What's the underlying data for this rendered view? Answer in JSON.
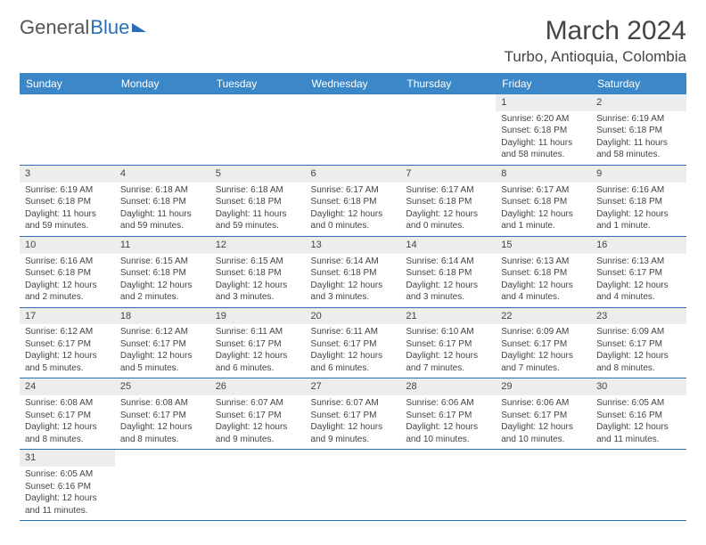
{
  "logo": {
    "part1": "General",
    "part2": "Blue"
  },
  "title": {
    "month": "March 2024",
    "location": "Turbo, Antioquia, Colombia"
  },
  "colors": {
    "header_bg": "#3b87c8",
    "header_text": "#ffffff",
    "daynum_bg": "#eceeee",
    "row_border": "#2a6fb5",
    "text": "#444444",
    "logo_gray": "#555555",
    "logo_blue": "#2a6fb5",
    "page_bg": "#ffffff"
  },
  "typography": {
    "month_fontsize": 30,
    "location_fontsize": 17,
    "logo_fontsize": 22,
    "th_fontsize": 12,
    "daynum_fontsize": 11,
    "body_fontsize": 10
  },
  "weekdays": [
    "Sunday",
    "Monday",
    "Tuesday",
    "Wednesday",
    "Thursday",
    "Friday",
    "Saturday"
  ],
  "grid": [
    [
      {
        "n": "",
        "sunrise": "",
        "sunset": "",
        "daylight": ""
      },
      {
        "n": "",
        "sunrise": "",
        "sunset": "",
        "daylight": ""
      },
      {
        "n": "",
        "sunrise": "",
        "sunset": "",
        "daylight": ""
      },
      {
        "n": "",
        "sunrise": "",
        "sunset": "",
        "daylight": ""
      },
      {
        "n": "",
        "sunrise": "",
        "sunset": "",
        "daylight": ""
      },
      {
        "n": "1",
        "sunrise": "Sunrise: 6:20 AM",
        "sunset": "Sunset: 6:18 PM",
        "daylight": "Daylight: 11 hours and 58 minutes."
      },
      {
        "n": "2",
        "sunrise": "Sunrise: 6:19 AM",
        "sunset": "Sunset: 6:18 PM",
        "daylight": "Daylight: 11 hours and 58 minutes."
      }
    ],
    [
      {
        "n": "3",
        "sunrise": "Sunrise: 6:19 AM",
        "sunset": "Sunset: 6:18 PM",
        "daylight": "Daylight: 11 hours and 59 minutes."
      },
      {
        "n": "4",
        "sunrise": "Sunrise: 6:18 AM",
        "sunset": "Sunset: 6:18 PM",
        "daylight": "Daylight: 11 hours and 59 minutes."
      },
      {
        "n": "5",
        "sunrise": "Sunrise: 6:18 AM",
        "sunset": "Sunset: 6:18 PM",
        "daylight": "Daylight: 11 hours and 59 minutes."
      },
      {
        "n": "6",
        "sunrise": "Sunrise: 6:17 AM",
        "sunset": "Sunset: 6:18 PM",
        "daylight": "Daylight: 12 hours and 0 minutes."
      },
      {
        "n": "7",
        "sunrise": "Sunrise: 6:17 AM",
        "sunset": "Sunset: 6:18 PM",
        "daylight": "Daylight: 12 hours and 0 minutes."
      },
      {
        "n": "8",
        "sunrise": "Sunrise: 6:17 AM",
        "sunset": "Sunset: 6:18 PM",
        "daylight": "Daylight: 12 hours and 1 minute."
      },
      {
        "n": "9",
        "sunrise": "Sunrise: 6:16 AM",
        "sunset": "Sunset: 6:18 PM",
        "daylight": "Daylight: 12 hours and 1 minute."
      }
    ],
    [
      {
        "n": "10",
        "sunrise": "Sunrise: 6:16 AM",
        "sunset": "Sunset: 6:18 PM",
        "daylight": "Daylight: 12 hours and 2 minutes."
      },
      {
        "n": "11",
        "sunrise": "Sunrise: 6:15 AM",
        "sunset": "Sunset: 6:18 PM",
        "daylight": "Daylight: 12 hours and 2 minutes."
      },
      {
        "n": "12",
        "sunrise": "Sunrise: 6:15 AM",
        "sunset": "Sunset: 6:18 PM",
        "daylight": "Daylight: 12 hours and 3 minutes."
      },
      {
        "n": "13",
        "sunrise": "Sunrise: 6:14 AM",
        "sunset": "Sunset: 6:18 PM",
        "daylight": "Daylight: 12 hours and 3 minutes."
      },
      {
        "n": "14",
        "sunrise": "Sunrise: 6:14 AM",
        "sunset": "Sunset: 6:18 PM",
        "daylight": "Daylight: 12 hours and 3 minutes."
      },
      {
        "n": "15",
        "sunrise": "Sunrise: 6:13 AM",
        "sunset": "Sunset: 6:18 PM",
        "daylight": "Daylight: 12 hours and 4 minutes."
      },
      {
        "n": "16",
        "sunrise": "Sunrise: 6:13 AM",
        "sunset": "Sunset: 6:17 PM",
        "daylight": "Daylight: 12 hours and 4 minutes."
      }
    ],
    [
      {
        "n": "17",
        "sunrise": "Sunrise: 6:12 AM",
        "sunset": "Sunset: 6:17 PM",
        "daylight": "Daylight: 12 hours and 5 minutes."
      },
      {
        "n": "18",
        "sunrise": "Sunrise: 6:12 AM",
        "sunset": "Sunset: 6:17 PM",
        "daylight": "Daylight: 12 hours and 5 minutes."
      },
      {
        "n": "19",
        "sunrise": "Sunrise: 6:11 AM",
        "sunset": "Sunset: 6:17 PM",
        "daylight": "Daylight: 12 hours and 6 minutes."
      },
      {
        "n": "20",
        "sunrise": "Sunrise: 6:11 AM",
        "sunset": "Sunset: 6:17 PM",
        "daylight": "Daylight: 12 hours and 6 minutes."
      },
      {
        "n": "21",
        "sunrise": "Sunrise: 6:10 AM",
        "sunset": "Sunset: 6:17 PM",
        "daylight": "Daylight: 12 hours and 7 minutes."
      },
      {
        "n": "22",
        "sunrise": "Sunrise: 6:09 AM",
        "sunset": "Sunset: 6:17 PM",
        "daylight": "Daylight: 12 hours and 7 minutes."
      },
      {
        "n": "23",
        "sunrise": "Sunrise: 6:09 AM",
        "sunset": "Sunset: 6:17 PM",
        "daylight": "Daylight: 12 hours and 8 minutes."
      }
    ],
    [
      {
        "n": "24",
        "sunrise": "Sunrise: 6:08 AM",
        "sunset": "Sunset: 6:17 PM",
        "daylight": "Daylight: 12 hours and 8 minutes."
      },
      {
        "n": "25",
        "sunrise": "Sunrise: 6:08 AM",
        "sunset": "Sunset: 6:17 PM",
        "daylight": "Daylight: 12 hours and 8 minutes."
      },
      {
        "n": "26",
        "sunrise": "Sunrise: 6:07 AM",
        "sunset": "Sunset: 6:17 PM",
        "daylight": "Daylight: 12 hours and 9 minutes."
      },
      {
        "n": "27",
        "sunrise": "Sunrise: 6:07 AM",
        "sunset": "Sunset: 6:17 PM",
        "daylight": "Daylight: 12 hours and 9 minutes."
      },
      {
        "n": "28",
        "sunrise": "Sunrise: 6:06 AM",
        "sunset": "Sunset: 6:17 PM",
        "daylight": "Daylight: 12 hours and 10 minutes."
      },
      {
        "n": "29",
        "sunrise": "Sunrise: 6:06 AM",
        "sunset": "Sunset: 6:17 PM",
        "daylight": "Daylight: 12 hours and 10 minutes."
      },
      {
        "n": "30",
        "sunrise": "Sunrise: 6:05 AM",
        "sunset": "Sunset: 6:16 PM",
        "daylight": "Daylight: 12 hours and 11 minutes."
      }
    ],
    [
      {
        "n": "31",
        "sunrise": "Sunrise: 6:05 AM",
        "sunset": "Sunset: 6:16 PM",
        "daylight": "Daylight: 12 hours and 11 minutes."
      },
      {
        "n": "",
        "sunrise": "",
        "sunset": "",
        "daylight": ""
      },
      {
        "n": "",
        "sunrise": "",
        "sunset": "",
        "daylight": ""
      },
      {
        "n": "",
        "sunrise": "",
        "sunset": "",
        "daylight": ""
      },
      {
        "n": "",
        "sunrise": "",
        "sunset": "",
        "daylight": ""
      },
      {
        "n": "",
        "sunrise": "",
        "sunset": "",
        "daylight": ""
      },
      {
        "n": "",
        "sunrise": "",
        "sunset": "",
        "daylight": ""
      }
    ]
  ]
}
